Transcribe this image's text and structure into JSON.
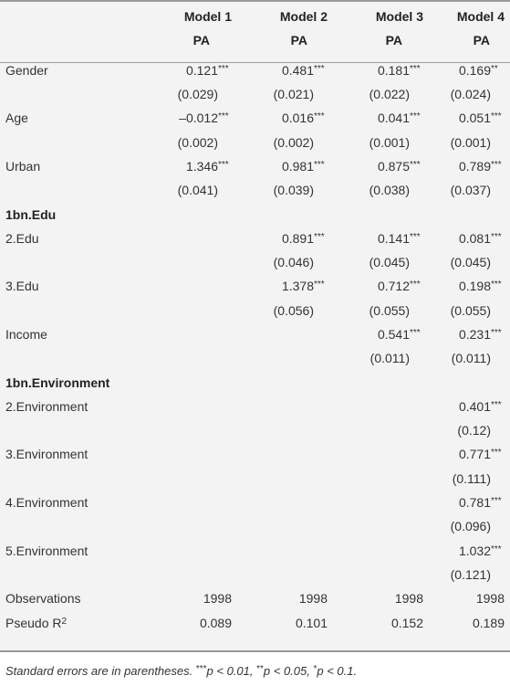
{
  "header": {
    "models": [
      {
        "name": "Model 1",
        "dep": "PA"
      },
      {
        "name": "Model 2",
        "dep": "PA"
      },
      {
        "name": "Model 3",
        "dep": "PA"
      },
      {
        "name": "Model 4",
        "dep": "PA"
      }
    ]
  },
  "rows": [
    {
      "label": "Gender",
      "values": [
        "0.121",
        "0.481",
        "0.181",
        "0.169"
      ],
      "stars": [
        "***",
        "***",
        "***",
        "**"
      ]
    },
    {
      "label": "",
      "values": [
        "(0.029)",
        "(0.021)",
        "(0.022)",
        "(0.024)"
      ],
      "stars": [
        "",
        "",
        "",
        ""
      ]
    },
    {
      "label": "Age",
      "values": [
        "–0.012",
        "0.016",
        "0.041",
        "0.051"
      ],
      "stars": [
        "***",
        "***",
        "***",
        "***"
      ]
    },
    {
      "label": "",
      "values": [
        "(0.002)",
        "(0.002)",
        "(0.001)",
        "(0.001)"
      ],
      "stars": [
        "",
        "",
        "",
        ""
      ]
    },
    {
      "label": "Urban",
      "values": [
        "1.346",
        "0.981",
        "0.875",
        "0.789"
      ],
      "stars": [
        "***",
        "***",
        "***",
        "***"
      ]
    },
    {
      "label": "",
      "values": [
        "(0.041)",
        "(0.039)",
        "(0.038)",
        "(0.037)"
      ],
      "stars": [
        "",
        "",
        "",
        ""
      ]
    },
    {
      "label": "1bn.Edu",
      "section": true,
      "values": [
        "",
        "",
        "",
        ""
      ],
      "stars": [
        "",
        "",
        "",
        ""
      ]
    },
    {
      "label": "2.Edu",
      "values": [
        "",
        "0.891",
        "0.141",
        "0.081"
      ],
      "stars": [
        "",
        "***",
        "***",
        "***"
      ]
    },
    {
      "label": "",
      "values": [
        "",
        "(0.046)",
        "(0.045)",
        "(0.045)"
      ],
      "stars": [
        "",
        "",
        "",
        ""
      ]
    },
    {
      "label": "3.Edu",
      "values": [
        "",
        "1.378",
        "0.712",
        "0.198"
      ],
      "stars": [
        "",
        "***",
        "***",
        "***"
      ]
    },
    {
      "label": "",
      "values": [
        "",
        "(0.056)",
        "(0.055)",
        "(0.055)"
      ],
      "stars": [
        "",
        "",
        "",
        ""
      ]
    },
    {
      "label": "Income",
      "values": [
        "",
        "",
        "0.541",
        "0.231"
      ],
      "stars": [
        "",
        "",
        "***",
        "***"
      ]
    },
    {
      "label": "",
      "values": [
        "",
        "",
        "(0.011)",
        "(0.011)"
      ],
      "stars": [
        "",
        "",
        "",
        ""
      ]
    },
    {
      "label": "1bn.Environment",
      "section": true,
      "values": [
        "",
        "",
        "",
        ""
      ],
      "stars": [
        "",
        "",
        "",
        ""
      ]
    },
    {
      "label": "2.Environment",
      "values": [
        "",
        "",
        "",
        "0.401"
      ],
      "stars": [
        "",
        "",
        "",
        "***"
      ]
    },
    {
      "label": "",
      "values": [
        "",
        "",
        "",
        "(0.12)"
      ],
      "stars": [
        "",
        "",
        "",
        ""
      ]
    },
    {
      "label": "3.Environment",
      "values": [
        "",
        "",
        "",
        "0.771"
      ],
      "stars": [
        "",
        "",
        "",
        "***"
      ]
    },
    {
      "label": "",
      "values": [
        "",
        "",
        "",
        "(0.111)"
      ],
      "stars": [
        "",
        "",
        "",
        ""
      ]
    },
    {
      "label": "4.Environment",
      "values": [
        "",
        "",
        "",
        "0.781"
      ],
      "stars": [
        "",
        "",
        "",
        "***"
      ]
    },
    {
      "label": "",
      "values": [
        "",
        "",
        "",
        "(0.096)"
      ],
      "stars": [
        "",
        "",
        "",
        ""
      ]
    },
    {
      "label": "5.Environment",
      "values": [
        "",
        "",
        "",
        "1.032"
      ],
      "stars": [
        "",
        "",
        "",
        "***"
      ]
    },
    {
      "label": "",
      "values": [
        "",
        "",
        "",
        "(0.121)"
      ],
      "stars": [
        "",
        "",
        "",
        ""
      ]
    },
    {
      "label": "Observations",
      "values": [
        "1998",
        "1998",
        "1998",
        "1998"
      ],
      "stars": [
        "",
        "",
        "",
        ""
      ]
    },
    {
      "label": "Pseudo R",
      "label_sup": "2",
      "values": [
        "0.089",
        "0.101",
        "0.152",
        "0.189"
      ],
      "stars": [
        "",
        "",
        "",
        ""
      ]
    }
  ],
  "note": {
    "part1": "Standard errors are in parentheses. ",
    "s1": "***",
    "part2": "p < 0.01, ",
    "s2": "**",
    "part3": "p < 0.05, ",
    "s3": "*",
    "part4": "p < 0.1."
  }
}
